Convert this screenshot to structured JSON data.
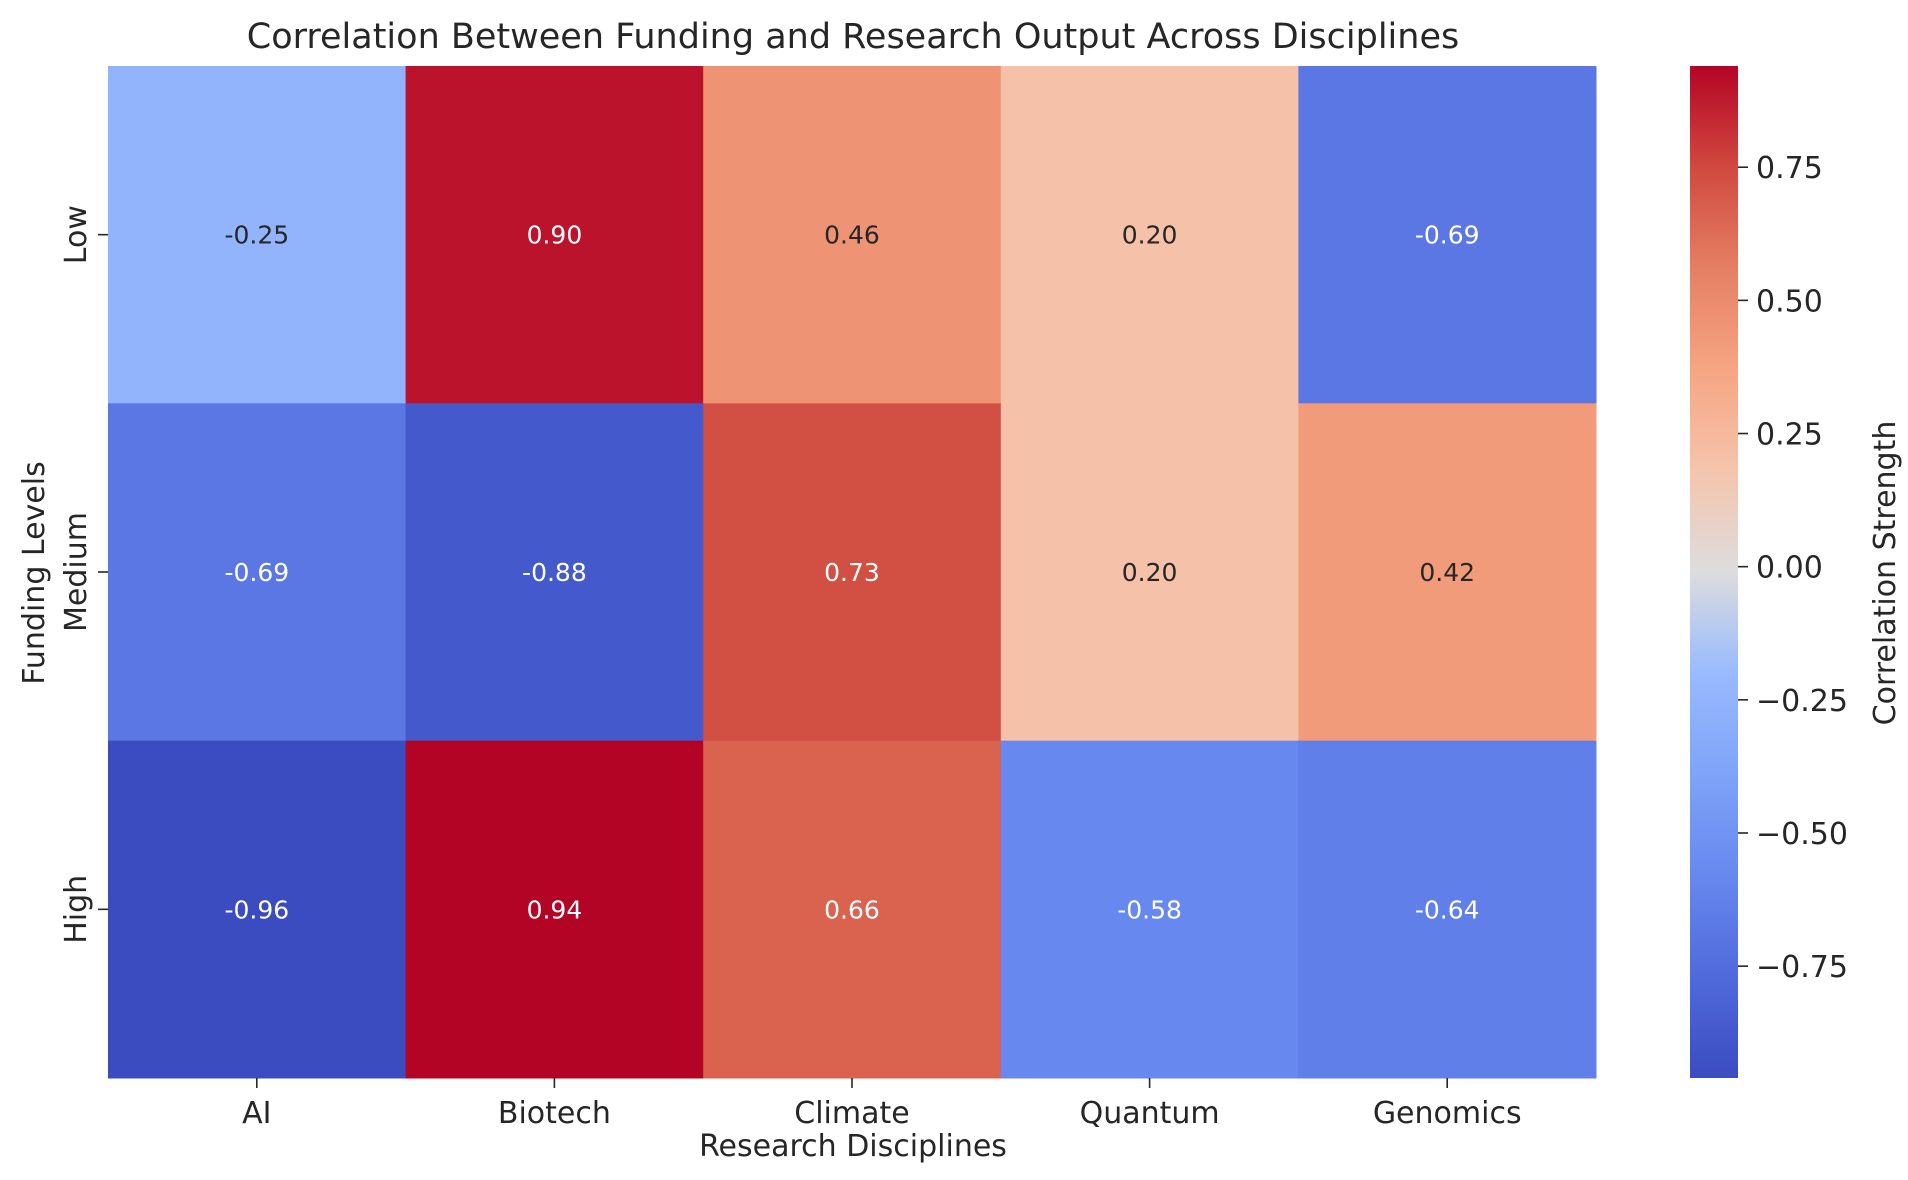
{
  "chart_data": {
    "type": "heatmap",
    "title": "Correlation Between Funding and Research Output Across Disciplines",
    "xlabel": "Research Disciplines",
    "ylabel": "Funding Levels",
    "x_categories": [
      "AI",
      "Biotech",
      "Climate",
      "Quantum",
      "Genomics"
    ],
    "y_categories": [
      "Low",
      "Medium",
      "High"
    ],
    "values": [
      [
        -0.25,
        0.9,
        0.46,
        0.2,
        -0.69
      ],
      [
        -0.69,
        -0.88,
        0.73,
        0.2,
        0.42
      ],
      [
        -0.96,
        0.94,
        0.66,
        -0.58,
        -0.64
      ]
    ],
    "value_labels": [
      [
        "-0.25",
        "0.90",
        "0.46",
        "0.20",
        "-0.69"
      ],
      [
        "-0.69",
        "-0.88",
        "0.73",
        "0.20",
        "0.42"
      ],
      [
        "-0.96",
        "0.94",
        "0.66",
        "-0.58",
        "-0.64"
      ]
    ],
    "colormap": "coolwarm",
    "colorbar": {
      "label": "Correlation Strength",
      "range": [
        -0.96,
        0.94
      ],
      "ticks": [
        -0.75,
        -0.5,
        -0.25,
        0.0,
        0.25,
        0.5,
        0.75
      ],
      "tick_labels": [
        "−0.75",
        "−0.50",
        "−0.25",
        "0.00",
        "0.25",
        "0.50",
        "0.75"
      ]
    }
  }
}
